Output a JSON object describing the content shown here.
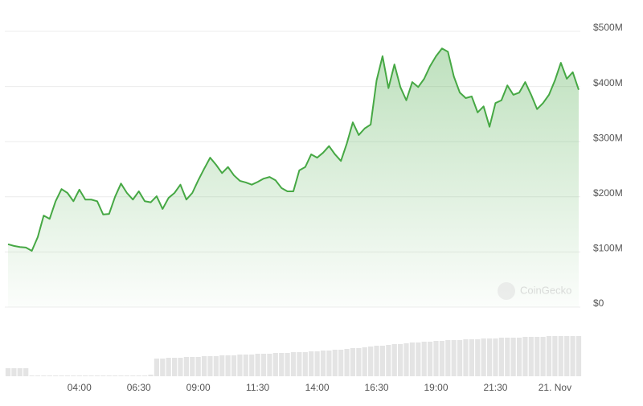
{
  "chart_data": {
    "type": "area",
    "color": "#46a844",
    "volume_color": "#e4e4e4",
    "watermark": "CoinGecko",
    "categories": [
      null,
      null,
      null,
      null,
      null,
      null,
      null,
      null,
      null,
      null,
      null,
      null,
      "04:00",
      null,
      null,
      null,
      null,
      null,
      null,
      null,
      null,
      null,
      "06:30",
      null,
      null,
      null,
      null,
      null,
      null,
      null,
      null,
      null,
      "09:00",
      null,
      null,
      null,
      null,
      null,
      null,
      null,
      null,
      null,
      "11:30",
      null,
      null,
      null,
      null,
      null,
      null,
      null,
      null,
      null,
      "14:00",
      null,
      null,
      null,
      null,
      null,
      null,
      null,
      null,
      null,
      "16:30",
      null,
      null,
      null,
      null,
      null,
      null,
      null,
      null,
      null,
      "19:00",
      null,
      null,
      null,
      null,
      null,
      null,
      null,
      null,
      null,
      "21:30",
      null,
      null,
      null,
      null,
      null,
      null,
      null,
      null,
      null,
      "21. Nov",
      null,
      null,
      null,
      null
    ],
    "values": [
      114000000,
      111000000,
      109000000,
      108000000,
      102000000,
      127000000,
      166000000,
      160000000,
      192000000,
      214000000,
      207000000,
      192000000,
      213000000,
      195000000,
      195000000,
      192000000,
      168000000,
      169000000,
      200000000,
      224000000,
      207000000,
      195000000,
      210000000,
      192000000,
      190000000,
      201000000,
      178000000,
      198000000,
      207000000,
      222000000,
      195000000,
      207000000,
      230000000,
      251000000,
      271000000,
      258000000,
      243000000,
      254000000,
      239000000,
      229000000,
      226000000,
      222000000,
      227000000,
      233000000,
      236000000,
      230000000,
      216000000,
      210000000,
      210000000,
      248000000,
      254000000,
      277000000,
      271000000,
      280000000,
      292000000,
      277000000,
      265000000,
      297000000,
      335000000,
      312000000,
      324000000,
      331000000,
      411000000,
      455000000,
      397000000,
      440000000,
      399000000,
      375000000,
      408000000,
      399000000,
      414000000,
      437000000,
      455000000,
      469000000,
      463000000,
      418000000,
      389000000,
      379000000,
      382000000,
      353000000,
      364000000,
      327000000,
      370000000,
      375000000,
      402000000,
      385000000,
      389000000,
      408000000,
      385000000,
      359000000,
      370000000,
      385000000,
      411000000,
      443000000,
      414000000,
      426000000,
      394000000
    ],
    "volume": [
      10,
      10,
      10,
      10,
      1,
      1,
      1,
      1,
      1,
      1,
      1,
      1,
      1,
      1,
      1,
      1,
      1,
      1,
      1,
      1,
      1,
      1,
      1,
      1,
      2,
      22,
      22,
      23,
      23,
      23,
      24,
      24,
      24,
      25,
      25,
      25,
      26,
      26,
      26,
      27,
      27,
      27,
      28,
      28,
      28,
      29,
      29,
      29,
      30,
      30,
      30,
      31,
      31,
      32,
      32,
      33,
      33,
      34,
      35,
      35,
      36,
      37,
      38,
      38,
      39,
      40,
      40,
      41,
      42,
      42,
      43,
      43,
      44,
      44,
      45,
      45,
      45,
      46,
      46,
      46,
      47,
      47,
      47,
      48,
      48,
      48,
      48,
      49,
      49,
      49,
      49,
      50,
      50,
      50,
      50,
      50,
      50
    ],
    "volume_ylim": [
      0,
      50
    ],
    "ylim": [
      0,
      500000000
    ],
    "yticks": [
      {
        "value": 0,
        "label": "$0"
      },
      {
        "value": 100000000,
        "label": "$100M"
      },
      {
        "value": 200000000,
        "label": "$200M"
      },
      {
        "value": 300000000,
        "label": "$300M"
      },
      {
        "value": 400000000,
        "label": "$400M"
      },
      {
        "value": 500000000,
        "label": "$500M"
      }
    ],
    "grid": true
  }
}
